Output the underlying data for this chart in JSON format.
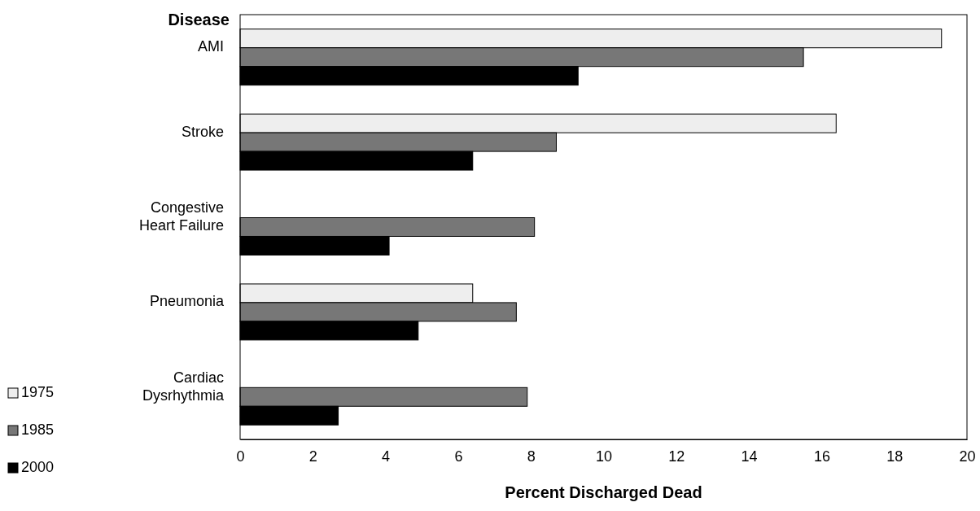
{
  "chart_data": {
    "type": "bar",
    "orientation": "horizontal",
    "xlabel": "Percent Discharged Dead",
    "ylabel": "Disease",
    "categories": [
      "AMI",
      "Stroke",
      "Congestive Heart Failure",
      "Pneumonia",
      "Cardiac Dysrhythmia"
    ],
    "series": [
      {
        "name": "1975",
        "color": "#eeeeee",
        "values": [
          19.3,
          16.4,
          null,
          6.4,
          null
        ]
      },
      {
        "name": "1985",
        "color": "#777777",
        "values": [
          15.5,
          8.7,
          8.1,
          7.6,
          7.9
        ]
      },
      {
        "name": "2000",
        "color": "#000000",
        "values": [
          9.3,
          6.4,
          4.1,
          4.9,
          2.7
        ]
      }
    ],
    "xlim": [
      0,
      20
    ],
    "xticks": [
      0,
      2,
      4,
      6,
      8,
      10,
      12,
      14,
      16,
      18,
      20
    ],
    "grid": false,
    "legend": "bottom left"
  }
}
